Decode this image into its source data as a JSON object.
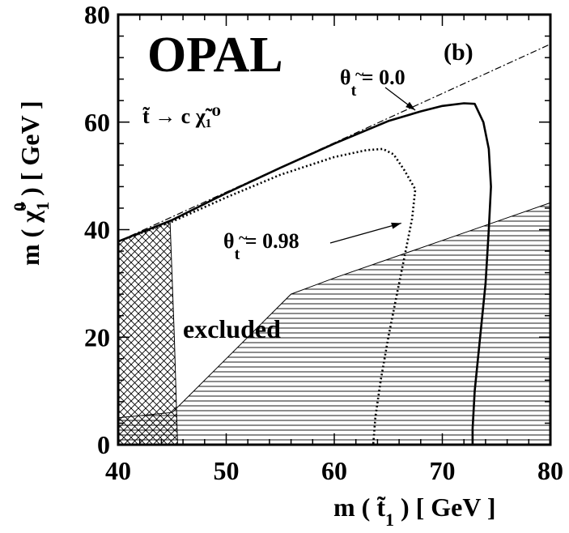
{
  "chart_data": {
    "type": "line",
    "experiment": "OPAL",
    "panel": "(b)",
    "process": "t̃ → c χ̃₁⁰",
    "xlabel": {
      "prefix": "m ( t̃",
      "sub": "1",
      "suffix": " ) [ GeV ]"
    },
    "ylabel": {
      "prefix": "m ( χ̃",
      "sub": "1",
      "sup": "0",
      "suffix": " ) [ GeV ]"
    },
    "xlim": [
      40,
      80
    ],
    "ylim": [
      0,
      80
    ],
    "x_ticks": [
      40,
      50,
      60,
      70,
      80
    ],
    "y_ticks": [
      0,
      20,
      40,
      60,
      80
    ],
    "x_tick_labels": [
      "40",
      "50",
      "60",
      "70",
      "80"
    ],
    "y_tick_labels": [
      "0",
      "20",
      "40",
      "60",
      "80"
    ],
    "grid": false,
    "series": [
      {
        "style": "solid",
        "points": [
          [
            40,
            37.8
          ],
          [
            45,
            41.8
          ],
          [
            50,
            46.8
          ],
          [
            55,
            51.5
          ],
          [
            60,
            56
          ],
          [
            65,
            60.2
          ],
          [
            68,
            62
          ],
          [
            70,
            63
          ],
          [
            72,
            63.5
          ],
          [
            73,
            63.4
          ],
          [
            73.8,
            60
          ],
          [
            74.3,
            55
          ],
          [
            74.5,
            48
          ],
          [
            74.3,
            40
          ],
          [
            74,
            30
          ],
          [
            73.5,
            20
          ],
          [
            73,
            10
          ],
          [
            72.8,
            3
          ],
          [
            72.8,
            0
          ]
        ]
      },
      {
        "style": "dotted",
        "points": [
          [
            40,
            37.8
          ],
          [
            45,
            41.5
          ],
          [
            50,
            46
          ],
          [
            55,
            50.2
          ],
          [
            60,
            53.5
          ],
          [
            63,
            54.8
          ],
          [
            64.5,
            55
          ],
          [
            65.5,
            54
          ],
          [
            66.5,
            51
          ],
          [
            67.5,
            47.5
          ],
          [
            67.2,
            42
          ],
          [
            66.5,
            35
          ],
          [
            65.8,
            28
          ],
          [
            65,
            20
          ],
          [
            64.3,
            12
          ],
          [
            63.8,
            5
          ],
          [
            63.6,
            0
          ]
        ]
      }
    ],
    "kinematic_limit": {
      "style": "dash-dot",
      "points": [
        [
          40,
          37.8
        ],
        [
          80,
          74.5
        ]
      ]
    },
    "excluded_regions": [
      {
        "hatch": "horizontal",
        "points": [
          [
            40,
            0
          ],
          [
            80,
            0
          ],
          [
            80,
            45
          ],
          [
            70,
            38
          ],
          [
            60,
            31
          ],
          [
            56,
            28
          ],
          [
            50,
            16
          ],
          [
            45,
            6
          ],
          [
            40,
            5
          ]
        ]
      },
      {
        "hatch": "cross",
        "points": [
          [
            40,
            0
          ],
          [
            45.5,
            0
          ],
          [
            45.2,
            20
          ],
          [
            44.8,
            41.5
          ],
          [
            40,
            37.8
          ]
        ]
      }
    ],
    "annotations": [
      {
        "id": "theta_00",
        "prefix": "θ",
        "tilde_sub": "t",
        "value_text": " = 0.0",
        "arrow_to": [
          67.5,
          62.2
        ]
      },
      {
        "id": "theta_098",
        "prefix": "θ",
        "tilde_sub": "t",
        "value_text": " = 0.98",
        "arrow_to": [
          66.2,
          41.2
        ]
      }
    ],
    "region_label": "excluded"
  }
}
